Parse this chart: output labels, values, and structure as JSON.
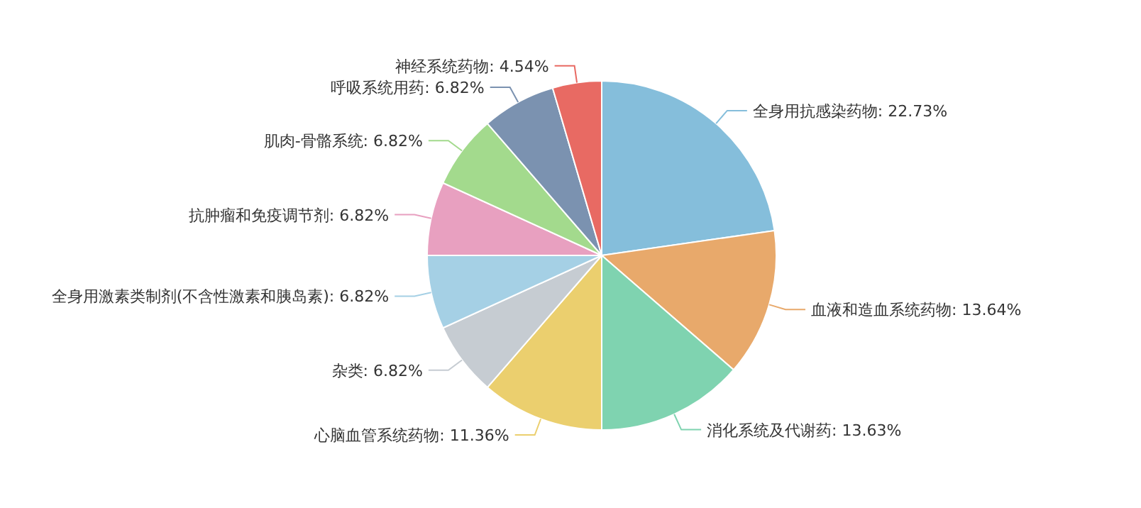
{
  "chart_data": {
    "type": "pie",
    "categories": [
      "全身用抗感染药物",
      "血液和造血系统药物",
      "消化系统及代谢药",
      "心脑血管系统药物",
      "杂类",
      "全身用激素类制剂(不含性激素和胰岛素)",
      "抗肿瘤和免疫调节剂",
      "肌肉-骨骼系统",
      "呼吸系统用药",
      "神经系统药物"
    ],
    "values": [
      22.73,
      13.64,
      13.63,
      11.36,
      6.82,
      6.82,
      6.82,
      6.82,
      6.82,
      4.54
    ],
    "value_labels": [
      "22.73%",
      "13.64%",
      "13.63%",
      "11.36%",
      "6.82%",
      "6.82%",
      "6.82%",
      "6.82%",
      "6.82%",
      "4.54%"
    ],
    "colors": [
      "#85bedb",
      "#e8a96b",
      "#7fd3b0",
      "#ebcf6e",
      "#c6ccd2",
      "#a5d0e5",
      "#e8a0c0",
      "#a3da8d",
      "#7b92b0",
      "#e86a63"
    ]
  }
}
